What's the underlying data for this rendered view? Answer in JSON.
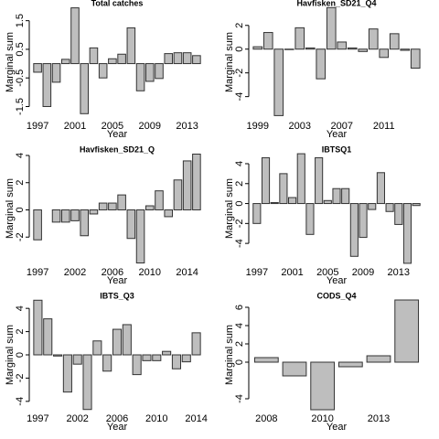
{
  "chart_data": [
    {
      "type": "bar",
      "title": "Total catches",
      "xlabel": "Year",
      "ylabel": "Marginal sum",
      "color": "#bebebe",
      "categories": [
        "1997",
        null,
        null,
        null,
        "2001",
        null,
        null,
        null,
        "2005",
        null,
        null,
        null,
        "2009",
        null,
        null,
        null,
        "2013",
        null
      ],
      "values": [
        -0.3,
        -1.5,
        -0.65,
        0.15,
        1.95,
        -1.75,
        0.55,
        -0.5,
        0.17,
        0.33,
        1.25,
        -0.95,
        -0.62,
        -0.52,
        0.35,
        0.38,
        0.38,
        0.28
      ],
      "ylim": [
        -1.9,
        2.0
      ],
      "yticks": [
        -1.5,
        -0.5,
        0.5,
        1.5
      ]
    },
    {
      "type": "bar",
      "title": "Havfisken_SD21_Q4",
      "xlabel": "Year",
      "ylabel": "Marginal sum",
      "color": "#bebebe",
      "categories": [
        "1999",
        null,
        null,
        null,
        "2003",
        null,
        null,
        null,
        "2007",
        null,
        null,
        null,
        "2011",
        null,
        null,
        null
      ],
      "values": [
        0.2,
        1.4,
        -5.6,
        0.0,
        1.8,
        0.1,
        -2.5,
        3.5,
        0.6,
        0.1,
        -0.2,
        1.7,
        -0.7,
        1.3,
        -0.1,
        -1.6
      ],
      "ylim": [
        -5.8,
        3.6
      ],
      "yticks": [
        -4,
        -2,
        0,
        2
      ]
    },
    {
      "type": "bar",
      "title": "Havfisken_SD21_Q",
      "xlabel": "Year",
      "ylabel": "Marginal sum",
      "color": "#bebebe",
      "categories": [
        "1997",
        null,
        null,
        null,
        "2002",
        null,
        null,
        null,
        "2006",
        null,
        null,
        null,
        "2010",
        null,
        null,
        null,
        "2014",
        null
      ],
      "values": [
        -2.2,
        null,
        -0.9,
        -0.9,
        -0.8,
        -1.9,
        -0.3,
        0.5,
        0.5,
        1.1,
        -2.1,
        -3.9,
        0.3,
        1.4,
        -0.5,
        2.2,
        3.6,
        4.1
      ],
      "ylim": [
        -4.0,
        4.2
      ],
      "yticks": [
        -2,
        0,
        2,
        4
      ]
    },
    {
      "type": "bar",
      "title": "IBTSQ1",
      "xlabel": "Year",
      "ylabel": "Marginal sum",
      "color": "#bebebe",
      "categories": [
        "1997",
        null,
        null,
        null,
        "2001",
        null,
        null,
        null,
        "2005",
        null,
        null,
        null,
        "2009",
        null,
        null,
        null,
        "2013",
        null,
        null
      ],
      "values": [
        -2.0,
        4.6,
        0.1,
        3.0,
        0.6,
        5.0,
        -3.1,
        4.6,
        0.3,
        1.5,
        1.5,
        -5.3,
        -3.4,
        -0.6,
        3.1,
        -0.8,
        -2.1,
        -6.0,
        -0.2
      ],
      "ylim": [
        -6.1,
        5.1
      ],
      "yticks": [
        -4,
        -2,
        0,
        2,
        4
      ]
    },
    {
      "type": "bar",
      "title": "IBTS_Q3",
      "xlabel": "Year",
      "ylabel": "Marginal sum",
      "color": "#bebebe",
      "categories": [
        "1997",
        null,
        null,
        null,
        "2002",
        null,
        null,
        null,
        "2006",
        null,
        null,
        null,
        "2010",
        null,
        null,
        null,
        "2014"
      ],
      "values": [
        4.7,
        3.1,
        -0.1,
        -3.2,
        -0.8,
        -4.7,
        1.2,
        -1.4,
        2.2,
        2.6,
        -1.7,
        -0.5,
        -0.5,
        0.3,
        -1.2,
        -0.6,
        1.9
      ],
      "ylim": [
        -4.8,
        4.8
      ],
      "yticks": [
        -4,
        -2,
        0,
        2,
        4
      ]
    },
    {
      "type": "bar",
      "title": "CODS_Q4",
      "xlabel": "Year",
      "ylabel": "Marginal sum",
      "color": "#bebebe",
      "categories": [
        "2008",
        null,
        "2010",
        null,
        "2013",
        null
      ],
      "values": [
        0.5,
        -1.5,
        -5.2,
        -0.5,
        0.7,
        6.8
      ],
      "ylim": [
        -5.3,
        6.9
      ],
      "yticks": [
        -4,
        0,
        2,
        4,
        6
      ]
    }
  ]
}
